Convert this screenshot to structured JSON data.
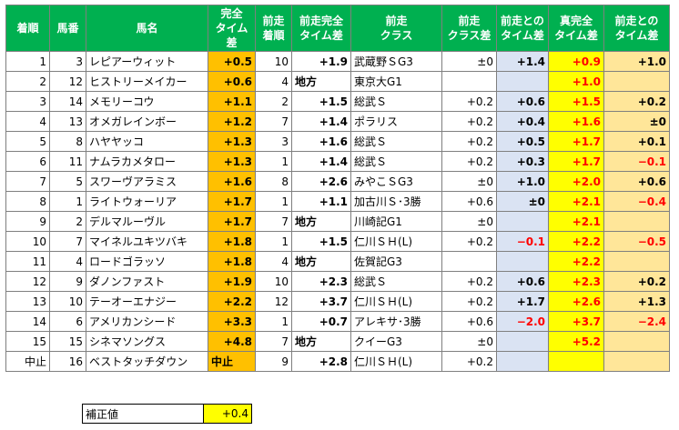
{
  "headers": [
    "着順",
    "馬番",
    "馬名",
    "完全\nタイム差",
    "前走\n着順",
    "前走完全\nタイム差",
    "前走\nクラス",
    "前走\nクラス差",
    "前走との\nタイム差",
    "真完全\nタイム差",
    "前走との\nタイム差"
  ],
  "rows": [
    {
      "rank": "1",
      "num": "3",
      "name": "レピアーウィット",
      "time": "+0.5",
      "prev_rank": "10",
      "prev_time": "+1.9",
      "prev_class": "武蔵野ＳG3",
      "class_diff": "±0",
      "diff": "+1.4",
      "true_time": "+0.9",
      "delta": "+1.0"
    },
    {
      "rank": "2",
      "num": "12",
      "name": "ヒストリーメイカー",
      "time": "+0.6",
      "prev_rank": "4",
      "prev_time": "地方",
      "prev_class": "東京大G1",
      "class_diff": "",
      "diff": "",
      "true_time": "+1.0",
      "delta": ""
    },
    {
      "rank": "3",
      "num": "14",
      "name": "メモリーコウ",
      "time": "+1.1",
      "prev_rank": "2",
      "prev_time": "+1.5",
      "prev_class": "総武Ｓ",
      "class_diff": "+0.2",
      "diff": "+0.6",
      "true_time": "+1.5",
      "delta": "+0.2"
    },
    {
      "rank": "4",
      "num": "13",
      "name": "オメガレインボー",
      "time": "+1.2",
      "prev_rank": "7",
      "prev_time": "+1.4",
      "prev_class": "ポラリス",
      "class_diff": "+0.2",
      "diff": "+0.4",
      "true_time": "+1.6",
      "delta": "±0"
    },
    {
      "rank": "5",
      "num": "8",
      "name": "ハヤヤッコ",
      "time": "+1.3",
      "prev_rank": "3",
      "prev_time": "+1.6",
      "prev_class": "総武Ｓ",
      "class_diff": "+0.2",
      "diff": "+0.5",
      "true_time": "+1.7",
      "delta": "+0.1"
    },
    {
      "rank": "6",
      "num": "11",
      "name": "ナムラカメタロー",
      "time": "+1.3",
      "prev_rank": "1",
      "prev_time": "+1.4",
      "prev_class": "総武Ｓ",
      "class_diff": "+0.2",
      "diff": "+0.3",
      "true_time": "+1.7",
      "delta": "−0.1"
    },
    {
      "rank": "7",
      "num": "5",
      "name": "スワーヴアラミス",
      "time": "+1.6",
      "prev_rank": "8",
      "prev_time": "+2.6",
      "prev_class": "みやこＳG3",
      "class_diff": "±0",
      "diff": "+1.0",
      "true_time": "+2.0",
      "delta": "+0.6"
    },
    {
      "rank": "8",
      "num": "1",
      "name": "ライトウォーリア",
      "time": "+1.7",
      "prev_rank": "1",
      "prev_time": "+1.1",
      "prev_class": "加古川Ｓ･3勝",
      "class_diff": "+0.6",
      "diff": "±0",
      "true_time": "+2.1",
      "delta": "−0.4"
    },
    {
      "rank": "9",
      "num": "2",
      "name": "デルマルーヴル",
      "time": "+1.7",
      "prev_rank": "7",
      "prev_time": "地方",
      "prev_class": "川崎記G1",
      "class_diff": "±0",
      "diff": "",
      "true_time": "+2.1",
      "delta": ""
    },
    {
      "rank": "10",
      "num": "7",
      "name": "マイネルユキツバキ",
      "time": "+1.8",
      "prev_rank": "1",
      "prev_time": "+1.5",
      "prev_class": "仁川ＳＨ(L)",
      "class_diff": "+0.2",
      "diff": "−0.1",
      "true_time": "+2.2",
      "delta": "−0.5"
    },
    {
      "rank": "11",
      "num": "4",
      "name": "ロードゴラッソ",
      "time": "+1.8",
      "prev_rank": "4",
      "prev_time": "地方",
      "prev_class": "佐賀記G3",
      "class_diff": "",
      "diff": "",
      "true_time": "+2.2",
      "delta": ""
    },
    {
      "rank": "12",
      "num": "9",
      "name": "ダノンファスト",
      "time": "+1.9",
      "prev_rank": "10",
      "prev_time": "+2.3",
      "prev_class": "総武Ｓ",
      "class_diff": "+0.2",
      "diff": "+0.6",
      "true_time": "+2.3",
      "delta": "+0.2"
    },
    {
      "rank": "13",
      "num": "10",
      "name": "テーオーエナジー",
      "time": "+2.2",
      "prev_rank": "12",
      "prev_time": "+3.7",
      "prev_class": "仁川ＳＨ(L)",
      "class_diff": "+0.2",
      "diff": "+1.7",
      "true_time": "+2.6",
      "delta": "+1.3"
    },
    {
      "rank": "14",
      "num": "6",
      "name": "アメリカンシード",
      "time": "+3.3",
      "prev_rank": "1",
      "prev_time": "+0.7",
      "prev_class": "アレキサ･3勝",
      "class_diff": "+0.6",
      "diff": "−2.0",
      "true_time": "+3.7",
      "delta": "−2.4"
    },
    {
      "rank": "15",
      "num": "15",
      "name": "シネマソングス",
      "time": "+4.8",
      "prev_rank": "7",
      "prev_time": "地方",
      "prev_class": "クイーG3",
      "class_diff": "±0",
      "diff": "",
      "true_time": "+5.2",
      "delta": ""
    },
    {
      "rank": "中止",
      "num": "16",
      "name": "ベストタッチダウン",
      "time": "中止",
      "prev_rank": "9",
      "prev_time": "+2.8",
      "prev_class": "仁川ＳＨ(L)",
      "class_diff": "+0.2",
      "diff": "",
      "true_time": "",
      "delta": ""
    }
  ],
  "correction": {
    "label": "補正値",
    "value": "+0.4"
  },
  "colors": {
    "header": "#00b050",
    "orange": "#ffc000",
    "blue": "#dae3f3",
    "yellow": "#ffff00",
    "peach": "#ffe699",
    "red": "#ff0000"
  }
}
